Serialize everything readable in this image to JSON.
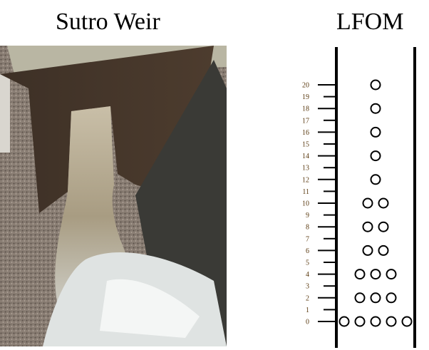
{
  "titles": {
    "left": "Sutro Weir",
    "right": "LFOM"
  },
  "lfom": {
    "tick_labels": [
      "0",
      "1",
      "2",
      "3",
      "4",
      "5",
      "6",
      "7",
      "8",
      "9",
      "10",
      "11",
      "12",
      "13",
      "14",
      "15",
      "16",
      "17",
      "18",
      "19",
      "20"
    ],
    "orifice_rows": [
      {
        "row": 0,
        "count": 5
      },
      {
        "row": 2,
        "count": 3
      },
      {
        "row": 4,
        "count": 3
      },
      {
        "row": 6,
        "count": 2
      },
      {
        "row": 8,
        "count": 2
      },
      {
        "row": 10,
        "count": 2
      },
      {
        "row": 12,
        "count": 1
      },
      {
        "row": 14,
        "count": 1
      },
      {
        "row": 16,
        "count": 1
      },
      {
        "row": 18,
        "count": 1
      },
      {
        "row": 20,
        "count": 1
      }
    ],
    "colors": {
      "tick_label": "#5a3a10",
      "line": "#000000"
    }
  }
}
